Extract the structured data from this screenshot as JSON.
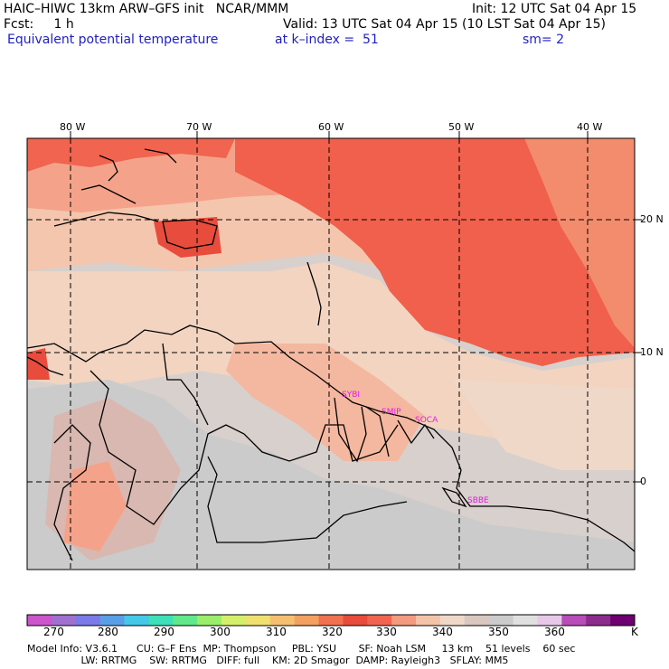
{
  "header": {
    "line1_left": "HAIC–HIWC 13km ARW–GFS init   NCAR/MMM",
    "line1_right": "Init: 12 UTC Sat 04 Apr 15",
    "line2_left": "Fcst:     1 h",
    "line2_right": "Valid: 13 UTC Sat 04 Apr 15 (10 LST Sat 04 Apr 15)",
    "line3_left": "Equivalent potential temperature",
    "line3_mid": "at k–index =  51",
    "line3_right": "sm= 2"
  },
  "map": {
    "lon_labels": [
      "80 W",
      "70 W",
      "60 W",
      "50 W",
      "40 W"
    ],
    "lat_labels": [
      "20 N",
      "10 N",
      "0"
    ],
    "stations": [
      "SYBI",
      "SMJP",
      "SOCA",
      "SBBE"
    ]
  },
  "colorbar": {
    "colors": [
      "#cc55cc",
      "#a070d0",
      "#7a7ae8",
      "#5a9ee8",
      "#46c8e8",
      "#3de0b8",
      "#60e88a",
      "#9aee6a",
      "#d4f06a",
      "#f0e070",
      "#f4c070",
      "#f4a060",
      "#f07050",
      "#e84c3c",
      "#f06450",
      "#f49a80",
      "#f4c4a8",
      "#f0d8c8",
      "#d8c8c0",
      "#cccccc",
      "#e0e0e0",
      "#e8c8e8",
      "#b84cb8",
      "#8c2c8c",
      "#6e0070"
    ],
    "labels": [
      "270",
      "280",
      "290",
      "300",
      "310",
      "320",
      "330",
      "340",
      "350",
      "360",
      "K"
    ]
  },
  "footer": {
    "line1": "Model Info: V3.6.1      CU: G–F Ens  MP: Thompson     PBL: YSU       SF: Noah LSM     13 km    51 levels    60 sec",
    "line2": "                 LW: RRTMG    SW: RRTMG   DIFF: full    KM: 2D Smagor  DAMP: Rayleigh3   SFLAY: MM5"
  }
}
